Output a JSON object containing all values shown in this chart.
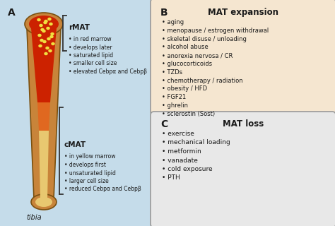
{
  "panel_A_label": "A",
  "panel_B_label": "B",
  "panel_C_label": "C",
  "panel_A_bg": "#c5dcea",
  "panel_B_bg": "#f5e6d0",
  "panel_C_bg": "#e8e8e8",
  "rMAT_label": "rMAT",
  "cMAT_label": "cMAT",
  "tibia_label": "tibia",
  "MAT_expansion_title": "MAT expansion",
  "MAT_loss_title": "MAT loss",
  "rMAT_bullets": [
    "in red marrow",
    "develops later",
    "saturated lipid",
    "smaller cell size",
    "elevated Cebpα and Cebpβ"
  ],
  "cMAT_bullets": [
    "in yellow marrow",
    "develops first",
    "unsaturated lipid",
    "larger cell size",
    "reduced Cebpα and Cebpβ"
  ],
  "expansion_bullets": [
    "aging",
    "menopause / estrogen withdrawal",
    "skeletal disuse / unloading",
    "alcohol abuse",
    "anorexia nervosa / CR",
    "glucocorticoids",
    "TZDs",
    "chemotherapy / radiation",
    "obesity / HFD",
    "FGF21",
    "ghrelin",
    "sclerostin (Sost)"
  ],
  "loss_bullets": [
    "exercise",
    "mechanical loading",
    "metformin",
    "vanadate",
    "cold exposure",
    "PTH"
  ],
  "bone_outer_color": "#c8843a",
  "bone_cortex_color": "#d4963c",
  "bone_red_top_color": "#cc2200",
  "bone_orange_mid_color": "#e06820",
  "bone_yellow_color": "#e8c870",
  "bone_yellow_dots_color": "#f0e040",
  "bone_edge_color": "#7a5010",
  "text_color": "#1a1a1a",
  "bullet_char": "•",
  "fig_w": 4.74,
  "fig_h": 3.2,
  "dpi": 100
}
